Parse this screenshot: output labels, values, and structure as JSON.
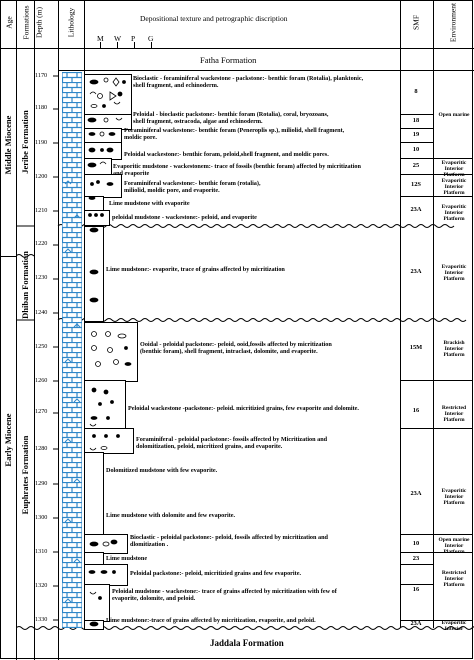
{
  "headers": {
    "age": "Age",
    "formations": "Formations",
    "depth": "Depth (m)",
    "lithology": "Lithology",
    "texture": "Depositional texture and petrographic discription",
    "texture_scale": [
      "M",
      "W",
      "P",
      "G"
    ],
    "smf": "SMF",
    "environment": "Environment"
  },
  "ages": {
    "middle": "Middle Miocene",
    "early": "Early Miocene"
  },
  "formations": {
    "top": "Fatha Formation",
    "jeribe": "Jeribe Formation",
    "dhiban": "Dhiban Formation",
    "euphrates": "Euphrates Formation",
    "bottom": "Jaddala Formation"
  },
  "depth_ticks": [
    "1170",
    "1180",
    "1190",
    "1200",
    "1210",
    "1220",
    "1230",
    "1240",
    "1250",
    "1260",
    "1270",
    "1280",
    "1290",
    "1300",
    "1310",
    "1320",
    "1330"
  ],
  "descriptions": [
    {
      "l1": "Bioclastic - foraminiferal wackestone - packstone:- benthic foram (Rotalia), planktonic,",
      "l2": "shell fragment, and echinoderm."
    },
    {
      "l1": "Peloidal - bioclastic packstone:- benthic foram (Rotalia), coral, bryozoans,",
      "l2": "shell fragment, ostracoda, algae  and echinoderm."
    },
    {
      "l1": "Foraminiferal wackestone:- benthic foram (Peneroplis sp.), miliolid, shell fragment,",
      "l2": "moldic pore."
    },
    {
      "l1": "Peloidal wackestone:- benthic foram, peloid,shell fragment, and moldic pores.",
      "l2": ""
    },
    {
      "l1": "Evaporitic mudstone - wackestonem:- trace of fossils (benthic foram) affected by micritization",
      "l2": "and evaporite"
    },
    {
      "l1": "Foraminiferal wackestone:- benthic foram (rotalia),",
      "l2": "miliolid, moldic pore, and evaporite."
    },
    {
      "l1": "Lime mudstone with evaporite",
      "l2": ""
    },
    {
      "l1": "peloidal mudstone - wackestone:- peloid, and evaporite",
      "l2": ""
    },
    {
      "l1": "Lime mudstone:- evaporite,  trace of grains affected by micritization",
      "l2": ""
    },
    {
      "l1": "Ooidal - peloidal packstone:- peloid, ooid,fossils affected by micritization",
      "l2": "(benthic foram), shell fragment, intraclast, dolomite, and evaporite."
    },
    {
      "l1": "Peloidal wackestone -packstone:- peloid. micritizied grains, few evaporite and dolomite.",
      "l2": ""
    },
    {
      "l1": "Foraminiferal - peloidal packstone:- fossils affected by Micritization and",
      "l2": "dolomitization, peloid, micritized grains, and evaporite."
    },
    {
      "l1": "Dolomitized mudstone with few evaporite.",
      "l2": ""
    },
    {
      "l1": "Lime mudstone with dolomite and few evaporite.",
      "l2": ""
    },
    {
      "l1": "Bioclastic - peloidal packstone:- peloid, fossils affected by micritization and",
      "l2": "dlomitization ."
    },
    {
      "l1": "Lime mudstone",
      "l2": ""
    },
    {
      "l1": "Peloidal packstone:- peloid, micritizied grains and few evaporite.",
      "l2": ""
    },
    {
      "l1": "Peloidal mudstone - wackestone:- trace of grains affected by micritization with few of",
      "l2": "evaporite, dolomite, and peloid."
    },
    {
      "l1": "Lime mudstone:-trace of grains affected by micritization, evaporite, and peloid.",
      "l2": ""
    }
  ],
  "smf": [
    "8",
    "18",
    "19",
    "10",
    "25",
    "12S",
    "23A",
    "23A",
    "15M",
    "16",
    "23A",
    "10",
    "23",
    "16",
    "23A"
  ],
  "environments": {
    "open_marine": "Open marine",
    "evap1": [
      "Evaporitic",
      "Interior Platform"
    ],
    "evap2": [
      "Evaporitic",
      "Interior Platform"
    ],
    "evap3": [
      "Evaporitic",
      "Interior Platform"
    ],
    "evap4": [
      "Evaporitic",
      "Interior Platform"
    ],
    "brackish": [
      "Brackish",
      "Interior",
      "Platform"
    ],
    "restricted1": [
      "Restricted",
      "Interior Platform"
    ],
    "evap5": [
      "Evaporitic",
      "Interior Platform"
    ],
    "open_marine2": [
      "Open marine",
      "Interior Platform"
    ],
    "restricted2": [
      "Restricted",
      "Interior Platform"
    ],
    "evap6": [
      "Evaporitic",
      "Interior"
    ]
  },
  "colors": {
    "lithology": "#2e86c8",
    "line": "#000000"
  }
}
